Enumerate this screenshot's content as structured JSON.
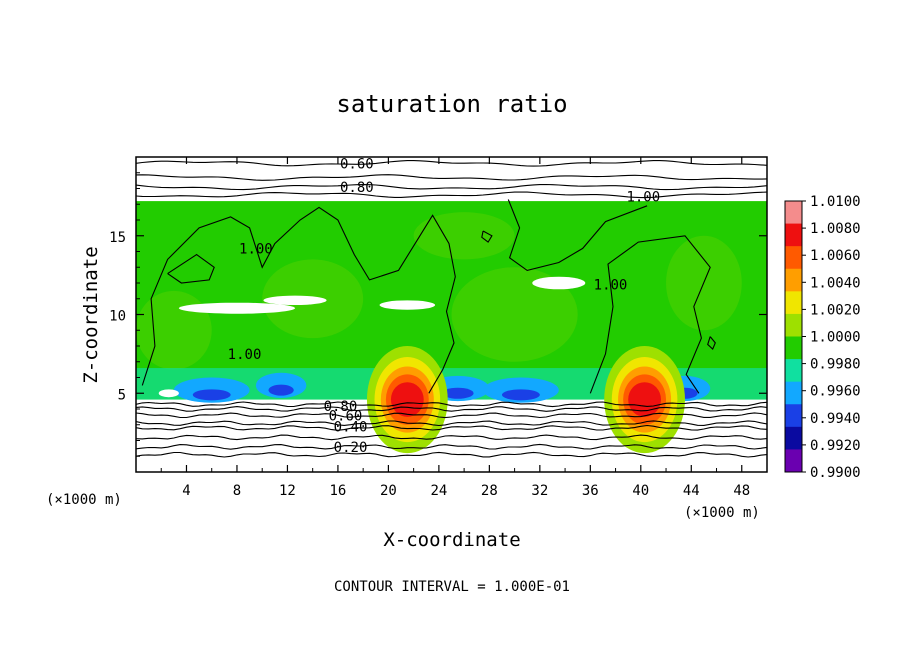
{
  "chart_data": {
    "type": "heatmap",
    "title": "saturation ratio",
    "xlabel": "X-coordinate",
    "ylabel": "Z-coordinate",
    "x_unit": "(×1000 m)",
    "x_unit_right": "(×1000 m)",
    "note": "CONTOUR INTERVAL = 1.000E-01",
    "xlim": [
      0,
      50
    ],
    "ylim": [
      0,
      20
    ],
    "x_ticks": [
      4,
      8,
      12,
      16,
      20,
      24,
      28,
      32,
      36,
      40,
      44,
      48
    ],
    "y_ticks": [
      5,
      10,
      15
    ],
    "x_tick_labels": [
      "4",
      "8",
      "12",
      "16",
      "20",
      "24",
      "28",
      "32",
      "36",
      "40",
      "44",
      "48"
    ],
    "y_tick_labels": [
      "5",
      "10",
      "15"
    ],
    "colorbar": {
      "levels": [
        "1.0100",
        "1.0080",
        "1.0060",
        "1.0040",
        "1.0020",
        "1.0000",
        "0.9980",
        "0.9960",
        "0.9940",
        "0.9920",
        "0.9900"
      ],
      "colors": [
        "#f48c8c",
        "#ee1010",
        "#ff5a00",
        "#ff9e00",
        "#f0e600",
        "#9ee000",
        "#22cc00",
        "#10e0a0",
        "#12a8ff",
        "#1a40e6",
        "#0a0aa0",
        "#6a00b0"
      ]
    },
    "contour_labels": [
      {
        "text": "0.60",
        "x": 17.5,
        "z": 19.6
      },
      {
        "text": "0.80",
        "x": 17.5,
        "z": 18.1
      },
      {
        "text": "1.00",
        "x": 40.2,
        "z": 17.5
      },
      {
        "text": "1.00",
        "x": 9.5,
        "z": 14.2
      },
      {
        "text": "1.00",
        "x": 37.6,
        "z": 11.9
      },
      {
        "text": "1.00",
        "x": 8.6,
        "z": 7.5
      },
      {
        "text": "0.80",
        "x": 16.2,
        "z": 4.2
      },
      {
        "text": "0.60",
        "x": 16.6,
        "z": 3.6
      },
      {
        "text": "0.40",
        "x": 17.0,
        "z": 2.9
      },
      {
        "text": "0.20",
        "x": 17.0,
        "z": 1.6
      }
    ],
    "lower_contour_levels": [
      4.3,
      4.0,
      3.6,
      3.1,
      2.8,
      2.2,
      1.6,
      1.1
    ],
    "upper_contour_levels": [
      19.6,
      18.7,
      18.1,
      17.6
    ],
    "moist_layer_z": [
      4.6,
      17.2
    ],
    "maxima_x": [
      21.5,
      40.3
    ],
    "grid": false
  }
}
